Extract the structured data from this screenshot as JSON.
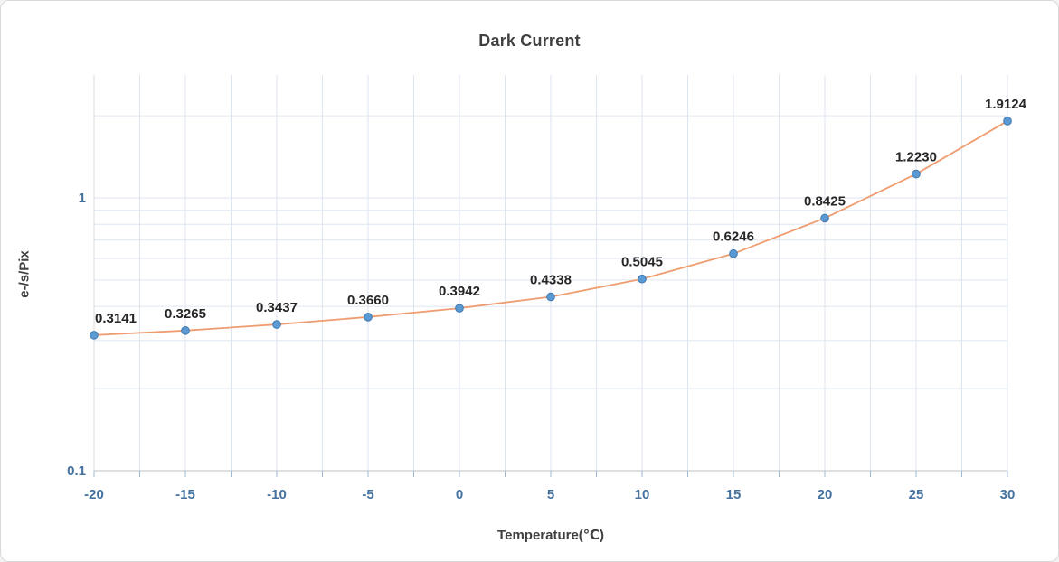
{
  "window": {
    "background": "#ffffff",
    "border_color": "#d9d9d9"
  },
  "chart_data": {
    "type": "line",
    "title": "Dark Current",
    "xlabel": "Temperature(℃)",
    "ylabel": "e-/s/Pix",
    "x": [
      -20,
      -15,
      -10,
      -5,
      0,
      5,
      10,
      15,
      20,
      25,
      30
    ],
    "values": [
      0.3141,
      0.3265,
      0.3437,
      0.366,
      0.3942,
      0.4338,
      0.5045,
      0.6246,
      0.8425,
      1.223,
      1.9124
    ],
    "x_tick_labels": [
      "-20",
      "-15",
      "-10",
      "-5",
      "0",
      "5",
      "10",
      "15",
      "20",
      "25",
      "30"
    ],
    "y_tick_labels": [
      "0.1",
      "1"
    ],
    "y_tick_values": [
      0.1,
      1
    ],
    "y_scale": "log",
    "xlim": [
      -20,
      30
    ],
    "ylim": [
      0.1,
      2.82
    ],
    "x_minor_step": 2.5,
    "grid": true,
    "legend_position": "none",
    "data_label_decimals": 4,
    "colors": {
      "line": "#ef9d70",
      "marker_fill": "#5b9bd5",
      "marker_stroke": "#3f77ad",
      "grid": "#dde6f0",
      "axis": "#bfbfbf",
      "left_axis": "#d9d9d9",
      "tick": "#9db9d5",
      "tick_label": "#44719e",
      "title": "#404040",
      "data_label": "#262626"
    }
  }
}
